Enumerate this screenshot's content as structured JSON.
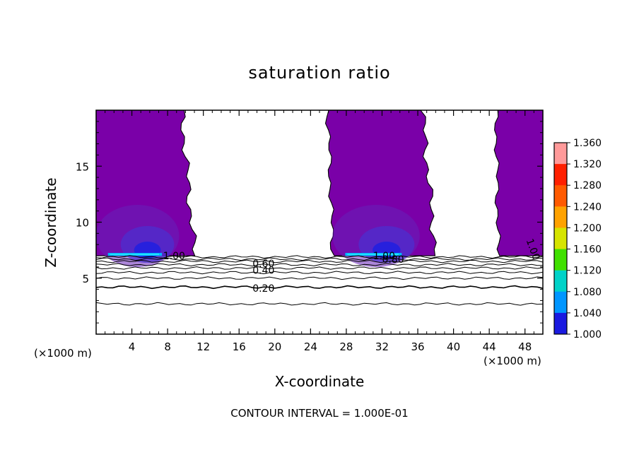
{
  "chart_data": {
    "type": "contour",
    "title": "saturation ratio",
    "xlabel": "X-coordinate",
    "ylabel": "Z-coordinate",
    "x_unit": "(×1000 m)",
    "x_ticks": [
      4,
      8,
      12,
      16,
      20,
      24,
      28,
      32,
      36,
      40,
      44,
      48
    ],
    "y_ticks": [
      5,
      10,
      15
    ],
    "xlim": [
      0,
      50
    ],
    "ylim": [
      0,
      20
    ],
    "contour_interval_note": "CONTOUR INTERVAL = 1.000E-01",
    "colorbar": {
      "levels": [
        "1.360",
        "1.320",
        "1.280",
        "1.240",
        "1.200",
        "1.160",
        "1.120",
        "1.080",
        "1.040",
        "1.000"
      ],
      "colors": [
        "#ff9a9a",
        "#ff2000",
        "#ff5a00",
        "#ffa200",
        "#d6e400",
        "#40e000",
        "#00d2c8",
        "#0096ff",
        "#1a1ae0",
        "#7a00a8"
      ]
    },
    "supersaturated_regions": [
      {
        "x_range": [
          0,
          11
        ],
        "z_range": [
          7,
          20
        ],
        "max_ratio": 1.1
      },
      {
        "x_range": [
          26.5,
          38
        ],
        "z_range": [
          7,
          20
        ],
        "max_ratio": 1.1
      },
      {
        "x_range": [
          45,
          50
        ],
        "z_range": [
          7,
          20
        ],
        "max_ratio": 1.0
      }
    ],
    "contour_labels": [
      {
        "text": "1.00",
        "x": 7.5,
        "z": 7.0
      },
      {
        "text": "1.00",
        "x": 31.0,
        "z": 7.0
      },
      {
        "text": "0.80",
        "x": 32.0,
        "z": 6.7
      },
      {
        "text": "1.00",
        "x": 48.5,
        "z": 8.5
      },
      {
        "text": "0.60",
        "x": 17.5,
        "z": 6.3
      },
      {
        "text": "0.40",
        "x": 17.5,
        "z": 5.7
      },
      {
        "text": "0.20",
        "x": 17.5,
        "z": 4.1
      }
    ],
    "contour_levels_below_cloud_base": [
      {
        "label": "",
        "z": 6.9
      },
      {
        "label": "",
        "z": 6.7
      },
      {
        "label": "",
        "z": 6.5
      },
      {
        "label": "",
        "z": 6.2
      },
      {
        "label": "",
        "z": 5.9
      },
      {
        "label": "",
        "z": 5.5
      },
      {
        "label": "",
        "z": 5.0
      },
      {
        "label": "",
        "z": 4.2
      },
      {
        "label": "",
        "z": 2.7
      }
    ]
  }
}
